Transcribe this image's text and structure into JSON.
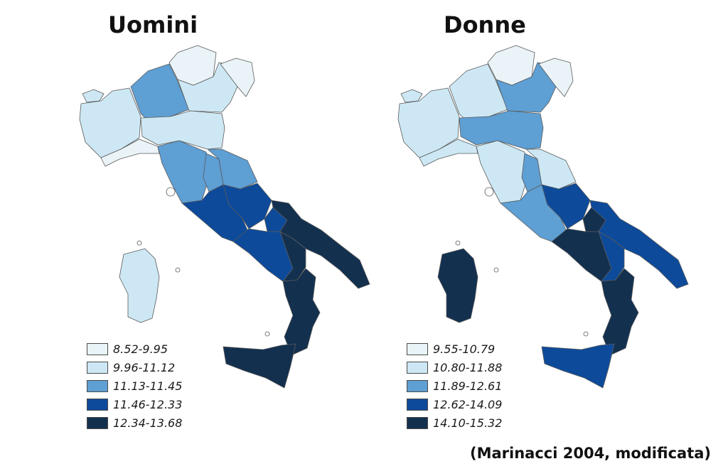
{
  "maps": [
    {
      "title": "Uomini",
      "legend": [
        {
          "label": "8.52-9.95",
          "color": "#eaf4f8"
        },
        {
          "label": "9.96-11.12",
          "color": "#cde8f4"
        },
        {
          "label": "11.13-11.45",
          "color": "#5e9fd4"
        },
        {
          "label": "11.46-12.33",
          "color": "#0d4a9a"
        },
        {
          "label": "12.34-13.68",
          "color": "#13304f"
        }
      ],
      "regions": {
        "valle_daosta": 1,
        "piemonte": 1,
        "lombardia": 2,
        "trentino": 0,
        "veneto": 1,
        "friuli": 0,
        "liguria": 0,
        "emilia_romagna": 1,
        "toscana": 2,
        "umbria": 2,
        "marche": 2,
        "lazio": 3,
        "abruzzo": 3,
        "molise": 3,
        "campania": 3,
        "puglia": 4,
        "basilicata": 4,
        "calabria": 4,
        "sicilia": 4,
        "sardegna": 1
      }
    },
    {
      "title": "Donne",
      "legend": [
        {
          "label": "9.55-10.79",
          "color": "#eaf4f8"
        },
        {
          "label": "10.80-11.88",
          "color": "#cde8f4"
        },
        {
          "label": "11.89-12.61",
          "color": "#5e9fd4"
        },
        {
          "label": "12.62-14.09",
          "color": "#0d4a9a"
        },
        {
          "label": "14.10-15.32",
          "color": "#13304f"
        }
      ],
      "regions": {
        "valle_daosta": 1,
        "piemonte": 1,
        "lombardia": 1,
        "trentino": 0,
        "veneto": 2,
        "friuli": 0,
        "liguria": 1,
        "emilia_romagna": 2,
        "toscana": 1,
        "umbria": 2,
        "marche": 1,
        "lazio": 2,
        "abruzzo": 3,
        "molise": 4,
        "campania": 4,
        "puglia": 3,
        "basilicata": 3,
        "calabria": 4,
        "sicilia": 3,
        "sardegna": 4
      }
    }
  ],
  "source": "(Marinacci 2004, modificata)"
}
